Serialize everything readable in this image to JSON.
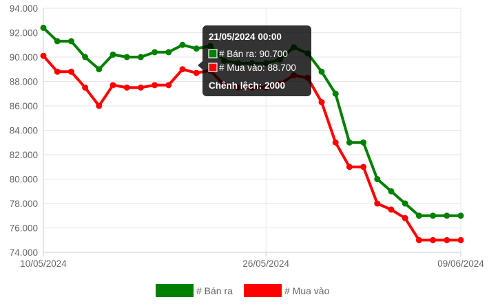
{
  "chart_data": {
    "type": "line",
    "x": [
      "10/05/2024",
      "11/05/2024",
      "12/05/2024",
      "13/05/2024",
      "14/05/2024",
      "15/05/2024",
      "16/05/2024",
      "17/05/2024",
      "18/05/2024",
      "19/05/2024",
      "20/05/2024",
      "21/05/2024",
      "22/05/2024",
      "23/05/2024",
      "24/05/2024",
      "25/05/2024",
      "26/05/2024",
      "27/05/2024",
      "28/05/2024",
      "29/05/2024",
      "30/05/2024",
      "31/05/2024",
      "01/06/2024",
      "02/06/2024",
      "03/06/2024",
      "04/06/2024",
      "05/06/2024",
      "06/06/2024",
      "07/06/2024",
      "08/06/2024",
      "09/06/2024"
    ],
    "x_tick_labels": [
      "10/05/2024",
      "26/05/2024",
      "09/06/2024"
    ],
    "ylim": [
      74000,
      94000
    ],
    "y_ticks": [
      74000,
      76000,
      78000,
      80000,
      82000,
      84000,
      86000,
      88000,
      90000,
      92000,
      94000
    ],
    "y_tick_labels": [
      "74.000",
      "76.000",
      "78.000",
      "80.000",
      "82.000",
      "84.000",
      "86.000",
      "88.000",
      "90.000",
      "92.000",
      "94.000"
    ],
    "grid": true,
    "legend_position": "bottom",
    "series": [
      {
        "name": "# Bán ra",
        "color": "#008000",
        "values": [
          92400,
          91300,
          91300,
          90000,
          89000,
          90200,
          90000,
          90000,
          90400,
          90400,
          91000,
          90700,
          90900,
          89700,
          89500,
          89500,
          89500,
          89800,
          90800,
          90300,
          88800,
          87000,
          83000,
          83000,
          80000,
          79000,
          78000,
          77000,
          77000,
          77000,
          77000
        ]
      },
      {
        "name": "# Mua vào",
        "color": "#ff0000",
        "values": [
          90100,
          88800,
          88800,
          87500,
          86000,
          87700,
          87500,
          87500,
          87700,
          87700,
          89000,
          88700,
          88900,
          87700,
          87500,
          87500,
          87500,
          87800,
          88500,
          88300,
          86300,
          83000,
          81000,
          81000,
          78000,
          77500,
          76800,
          75000,
          75000,
          75000,
          75000
        ]
      }
    ],
    "tooltip": {
      "title": "21/05/2024 00:00",
      "line1": "# Bán ra: 90.700",
      "line2": "# Mua vào: 88.700",
      "line3": "Chênh lệch: 2000",
      "index": 11
    }
  }
}
